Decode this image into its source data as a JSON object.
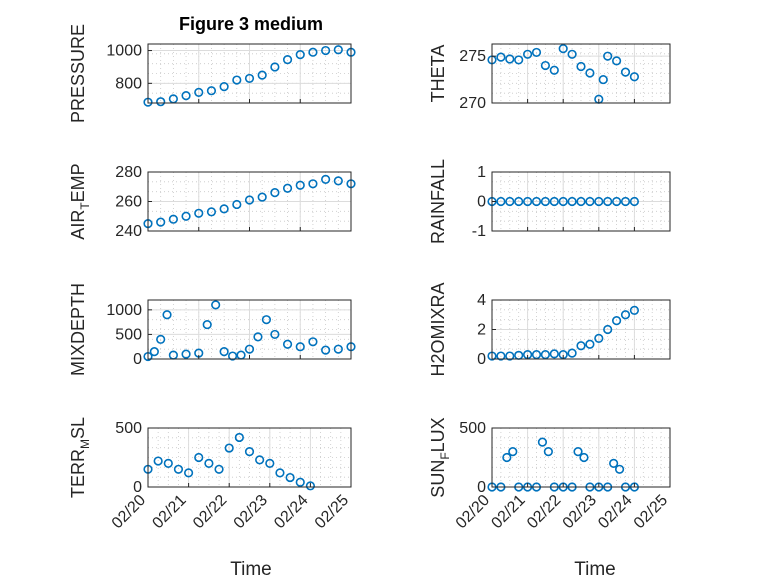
{
  "figure": {
    "title": "Figure 3 medium",
    "xlabel": "Time",
    "marker_color": "#0072BD",
    "grid": true,
    "minor_grid": true
  },
  "chart_data": [
    {
      "type": "scatter",
      "name": "pressure",
      "ylabel": {
        "main": "PRESSURE"
      },
      "ylim": [
        680,
        1040
      ],
      "yticks": [
        800,
        1000
      ],
      "xlim": [
        "02/20",
        "02/24"
      ],
      "xticks": [
        "02/20",
        "02/21",
        "02/22",
        "02/23",
        "02/24"
      ],
      "xtick_labels": [],
      "x": [
        "02/20 00:00",
        "02/20 06:00",
        "02/20 12:00",
        "02/20 18:00",
        "02/21 00:00",
        "02/21 06:00",
        "02/21 12:00",
        "02/21 18:00",
        "02/22 00:00",
        "02/22 06:00",
        "02/22 12:00",
        "02/22 18:00",
        "02/23 00:00",
        "02/23 06:00",
        "02/23 12:00",
        "02/23 18:00",
        "02/24 00:00"
      ],
      "y": [
        685,
        688,
        705,
        725,
        745,
        755,
        780,
        820,
        830,
        850,
        900,
        945,
        975,
        990,
        1000,
        1005,
        990
      ],
      "series_label": "PRESSURE"
    },
    {
      "type": "scatter",
      "name": "theta",
      "ylabel": {
        "main": "THETA"
      },
      "ylim": [
        270,
        276.3
      ],
      "yticks": [
        270,
        275
      ],
      "xlim": [
        "02/20",
        "02/25"
      ],
      "xticks": [
        "02/20",
        "02/21",
        "02/22",
        "02/23",
        "02/24",
        "02/25"
      ],
      "xtick_labels": [],
      "x": [
        "02/20 00:00",
        "02/20 06:00",
        "02/20 12:00",
        "02/20 18:00",
        "02/21 00:00",
        "02/21 06:00",
        "02/21 12:00",
        "02/21 18:00",
        "02/22 00:00",
        "02/22 06:00",
        "02/22 12:00",
        "02/22 18:00",
        "02/23 00:00",
        "02/23 03:00",
        "02/23 06:00",
        "02/23 12:00",
        "02/23 18:00",
        "02/24 00:00"
      ],
      "y": [
        274.6,
        274.9,
        274.7,
        274.6,
        275.2,
        275.4,
        274.0,
        273.5,
        275.8,
        275.2,
        273.9,
        273.2,
        270.4,
        272.5,
        275.0,
        274.5,
        273.3,
        272.8
      ],
      "series_label": "THETA"
    },
    {
      "type": "scatter",
      "name": "air-temp",
      "ylabel": {
        "main": "AIR",
        "sub": "T",
        "rest": "EMP"
      },
      "ylim": [
        240,
        280
      ],
      "yticks": [
        240,
        260,
        280
      ],
      "xlim": [
        "02/20",
        "02/24"
      ],
      "xticks": [
        "02/20",
        "02/21",
        "02/22",
        "02/23",
        "02/24"
      ],
      "xtick_labels": [],
      "x": [
        "02/20 00:00",
        "02/20 06:00",
        "02/20 12:00",
        "02/20 18:00",
        "02/21 00:00",
        "02/21 06:00",
        "02/21 12:00",
        "02/21 18:00",
        "02/22 00:00",
        "02/22 06:00",
        "02/22 12:00",
        "02/22 18:00",
        "02/23 00:00",
        "02/23 06:00",
        "02/23 12:00",
        "02/23 18:00",
        "02/24 00:00"
      ],
      "y": [
        245,
        246,
        248,
        250,
        252,
        253,
        255,
        258,
        261,
        263,
        266,
        269,
        271,
        272,
        275,
        274,
        272
      ],
      "series_label": "AIR_TEMP"
    },
    {
      "type": "scatter",
      "name": "rainfall",
      "ylabel": {
        "main": "RAINFALL"
      },
      "ylim": [
        -1,
        1
      ],
      "yticks": [
        -1,
        0,
        1
      ],
      "xlim": [
        "02/20",
        "02/25"
      ],
      "xticks": [
        "02/20",
        "02/21",
        "02/22",
        "02/23",
        "02/24",
        "02/25"
      ],
      "xtick_labels": [],
      "x": [
        "02/20 00:00",
        "02/20 06:00",
        "02/20 12:00",
        "02/20 18:00",
        "02/21 00:00",
        "02/21 06:00",
        "02/21 12:00",
        "02/21 18:00",
        "02/22 00:00",
        "02/22 06:00",
        "02/22 12:00",
        "02/22 18:00",
        "02/23 00:00",
        "02/23 06:00",
        "02/23 12:00",
        "02/23 18:00",
        "02/24 00:00"
      ],
      "y": [
        0,
        0,
        0,
        0,
        0,
        0,
        0,
        0,
        0,
        0,
        0,
        0,
        0,
        0,
        0,
        0,
        0
      ],
      "series_label": "RAINFALL"
    },
    {
      "type": "scatter",
      "name": "mixdepth",
      "ylabel": {
        "main": "MIXDEPTH"
      },
      "ylim": [
        0,
        1200
      ],
      "yticks": [
        0,
        500,
        1000
      ],
      "xlim": [
        "02/20",
        "02/24"
      ],
      "xticks": [
        "02/20",
        "02/21",
        "02/22",
        "02/23",
        "02/24"
      ],
      "xtick_labels": [],
      "x": [
        "02/20 00:00",
        "02/20 03:00",
        "02/20 06:00",
        "02/20 09:00",
        "02/20 12:00",
        "02/20 18:00",
        "02/21 00:00",
        "02/21 04:00",
        "02/21 08:00",
        "02/21 12:00",
        "02/21 16:00",
        "02/21 20:00",
        "02/22 00:00",
        "02/22 04:00",
        "02/22 08:00",
        "02/22 12:00",
        "02/22 18:00",
        "02/23 00:00",
        "02/23 06:00",
        "02/23 12:00",
        "02/23 18:00",
        "02/24 00:00"
      ],
      "y": [
        50,
        150,
        400,
        900,
        80,
        100,
        120,
        700,
        1100,
        150,
        60,
        80,
        200,
        450,
        800,
        500,
        300,
        250,
        350,
        180,
        200,
        250
      ],
      "series_label": "MIXDEPTH"
    },
    {
      "type": "scatter",
      "name": "h2omixra",
      "ylabel": {
        "main": "H2OMIXRA"
      },
      "ylim": [
        0,
        4
      ],
      "yticks": [
        0,
        2,
        4
      ],
      "xlim": [
        "02/20",
        "02/25"
      ],
      "xticks": [
        "02/20",
        "02/21",
        "02/22",
        "02/23",
        "02/24",
        "02/25"
      ],
      "xtick_labels": [],
      "x": [
        "02/20 00:00",
        "02/20 06:00",
        "02/20 12:00",
        "02/20 18:00",
        "02/21 00:00",
        "02/21 06:00",
        "02/21 12:00",
        "02/21 18:00",
        "02/22 00:00",
        "02/22 06:00",
        "02/22 12:00",
        "02/22 18:00",
        "02/23 00:00",
        "02/23 06:00",
        "02/23 12:00",
        "02/23 18:00",
        "02/24 00:00"
      ],
      "y": [
        0.2,
        0.2,
        0.2,
        0.25,
        0.3,
        0.3,
        0.3,
        0.35,
        0.3,
        0.4,
        0.9,
        1.0,
        1.4,
        2.0,
        2.6,
        3.0,
        3.3
      ],
      "series_label": "H2OMIXRA"
    },
    {
      "type": "scatter",
      "name": "terr-msl",
      "ylabel": {
        "main": "TERR",
        "sub": "M",
        "rest": "SL"
      },
      "ylim": [
        0,
        500
      ],
      "yticks": [
        0,
        500
      ],
      "xlim": [
        "02/20",
        "02/25"
      ],
      "xticks": [
        "02/20",
        "02/21",
        "02/22",
        "02/23",
        "02/24",
        "02/25"
      ],
      "xtick_labels": [
        "02/20",
        "02/21",
        "02/22",
        "02/23",
        "02/24",
        "02/25"
      ],
      "x": [
        "02/20 00:00",
        "02/20 06:00",
        "02/20 12:00",
        "02/20 18:00",
        "02/21 00:00",
        "02/21 06:00",
        "02/21 12:00",
        "02/21 18:00",
        "02/22 00:00",
        "02/22 06:00",
        "02/22 12:00",
        "02/22 18:00",
        "02/23 00:00",
        "02/23 06:00",
        "02/23 12:00",
        "02/23 18:00",
        "02/24 00:00"
      ],
      "y": [
        150,
        220,
        200,
        150,
        120,
        250,
        200,
        150,
        330,
        420,
        300,
        230,
        200,
        120,
        80,
        40,
        10
      ],
      "series_label": "TERR_MSL"
    },
    {
      "type": "scatter",
      "name": "sun-flux",
      "ylabel": {
        "main": "SUN",
        "sub": "F",
        "rest": "LUX"
      },
      "ylim": [
        0,
        500
      ],
      "yticks": [
        0,
        500
      ],
      "xlim": [
        "02/20",
        "02/25"
      ],
      "xticks": [
        "02/20",
        "02/21",
        "02/22",
        "02/23",
        "02/24",
        "02/25"
      ],
      "xtick_labels": [
        "02/20",
        "02/21",
        "02/22",
        "02/23",
        "02/24",
        "02/25"
      ],
      "x": [
        "02/20 00:00",
        "02/20 06:00",
        "02/20 10:00",
        "02/20 14:00",
        "02/20 18:00",
        "02/21 00:00",
        "02/21 06:00",
        "02/21 10:00",
        "02/21 14:00",
        "02/21 18:00",
        "02/22 00:00",
        "02/22 06:00",
        "02/22 10:00",
        "02/22 14:00",
        "02/22 18:00",
        "02/23 00:00",
        "02/23 06:00",
        "02/23 10:00",
        "02/23 14:00",
        "02/23 18:00",
        "02/24 00:00"
      ],
      "y": [
        0,
        0,
        250,
        300,
        0,
        0,
        0,
        380,
        300,
        0,
        0,
        0,
        300,
        250,
        0,
        0,
        0,
        200,
        150,
        0,
        0
      ],
      "series_label": "SUN_FLUX"
    }
  ]
}
